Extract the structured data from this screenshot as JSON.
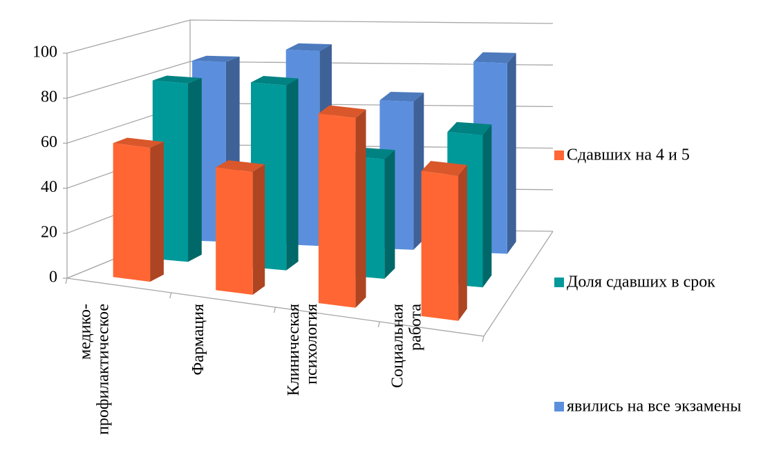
{
  "chart_data": {
    "type": "bar3d",
    "categories": [
      [
        "медико-",
        "профилактическое"
      ],
      [
        "Фармация"
      ],
      [
        "Клиническая",
        "психология"
      ],
      [
        "Социальная",
        "работа"
      ]
    ],
    "series": [
      {
        "name": "Сдавших на 4 и 5",
        "color": "#ff6633",
        "values": [
          60,
          55,
          85,
          65
        ]
      },
      {
        "name": "Доля сдавших в срок",
        "color": "#009999",
        "values": [
          82,
          85,
          55,
          70
        ]
      },
      {
        "name": "явились на все экзамены",
        "color": "#5b8fde",
        "values": [
          85,
          92,
          70,
          90
        ]
      }
    ],
    "ylim": [
      0,
      100
    ],
    "yticks": [
      0,
      20,
      40,
      60,
      80,
      100
    ],
    "grid": true,
    "legend": "right"
  }
}
